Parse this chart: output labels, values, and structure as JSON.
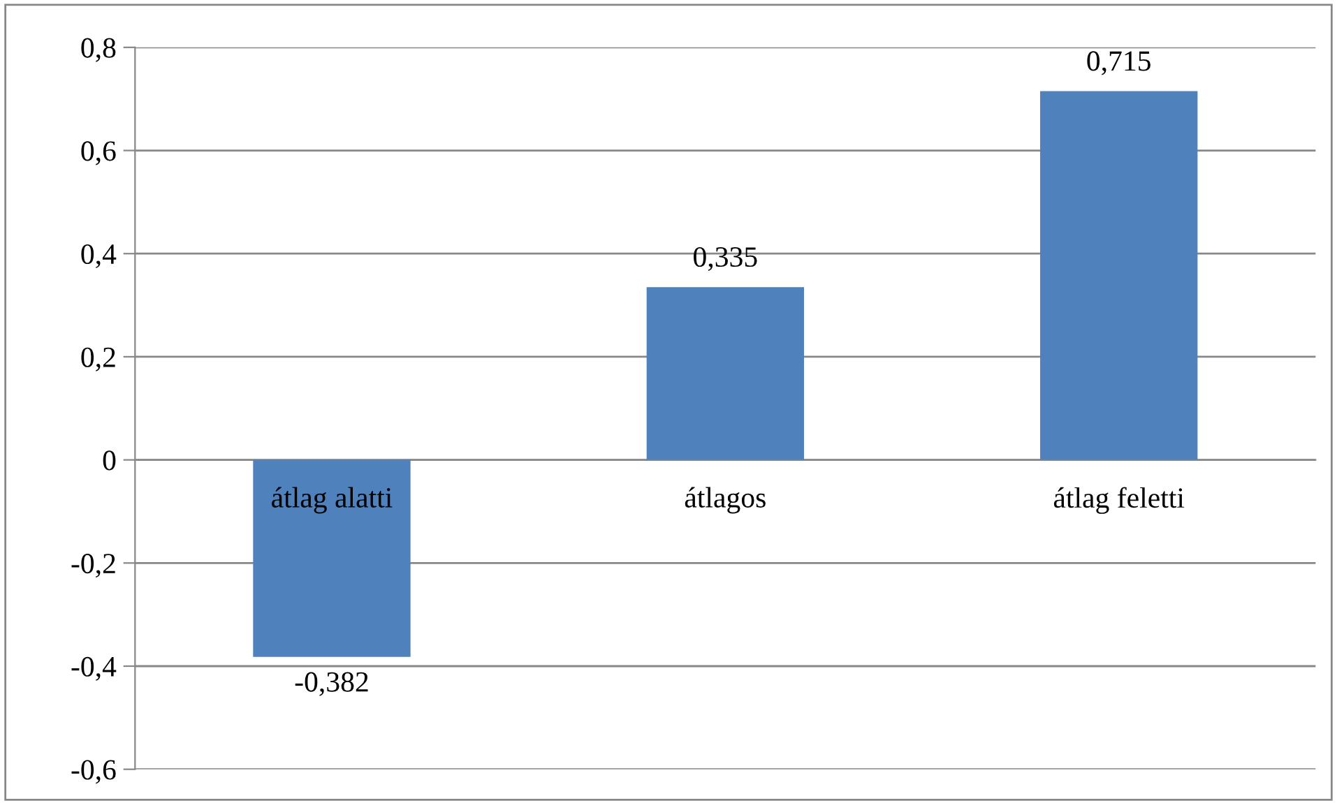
{
  "chart_data": {
    "type": "bar",
    "categories": [
      "átlag alatti",
      "átlagos",
      "átlag feletti"
    ],
    "values": [
      -0.382,
      0.335,
      0.715
    ],
    "value_labels": [
      "-0,382",
      "0,335",
      "0,715"
    ],
    "color": "#4f81bd",
    "ylim": [
      -0.6,
      0.8
    ],
    "yticks": [
      {
        "value": -0.6,
        "label": "-0,6"
      },
      {
        "value": -0.4,
        "label": "-0,4"
      },
      {
        "value": -0.2,
        "label": "-0,2"
      },
      0,
      {
        "value": 0.2,
        "label": "0,2"
      },
      {
        "value": 0.4,
        "label": "0,4"
      },
      {
        "value": 0.6,
        "label": "0,6"
      },
      {
        "value": 0.8,
        "label": "0,8"
      }
    ],
    "grid": "y",
    "legend": false
  }
}
